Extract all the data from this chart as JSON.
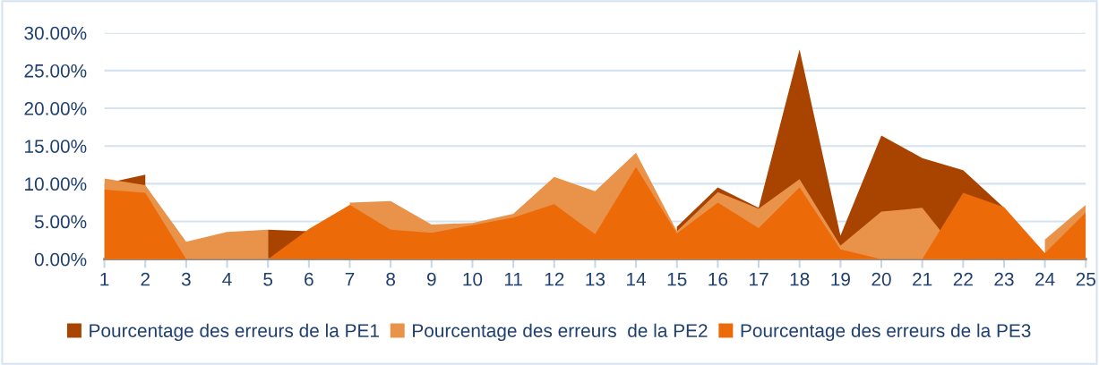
{
  "chart_data": {
    "type": "area",
    "categories": [
      "1",
      "2",
      "3",
      "4",
      "5",
      "6",
      "7",
      "8",
      "9",
      "10",
      "11",
      "12",
      "13",
      "14",
      "15",
      "16",
      "17",
      "18",
      "19",
      "20",
      "21",
      "22",
      "23",
      "24",
      "25"
    ],
    "series": [
      {
        "name": "Pourcentage des erreurs de la PE1",
        "color": "#a84400",
        "values": [
          10.0,
          11.2,
          null,
          null,
          3.9,
          3.7,
          null,
          null,
          null,
          null,
          null,
          null,
          null,
          null,
          4.3,
          9.5,
          6.8,
          27.8,
          3.1,
          16.4,
          13.4,
          11.8,
          6.8,
          null,
          null
        ]
      },
      {
        "name": "Pourcentage des erreurs  de la PE2",
        "color": "#e8924a",
        "values": [
          10.7,
          9.8,
          2.3,
          3.6,
          3.9,
          null,
          7.5,
          7.7,
          4.6,
          4.8,
          6.0,
          10.9,
          9.0,
          14.1,
          3.7,
          8.9,
          6.7,
          10.6,
          1.8,
          6.3,
          6.8,
          0,
          null,
          2.6,
          7.2
        ]
      },
      {
        "name": "Pourcentage des erreurs de la PE3",
        "color": "#ec6a08",
        "values": [
          9.2,
          8.8,
          0,
          0,
          0,
          4.0,
          7.2,
          3.9,
          3.5,
          4.5,
          5.5,
          7.3,
          3.3,
          12.2,
          3.4,
          7.5,
          4.1,
          9.5,
          1.3,
          0,
          0,
          8.8,
          6.9,
          0.8,
          6.2
        ]
      }
    ],
    "ylim": [
      0,
      30
    ],
    "yticks": [
      {
        "value": 0,
        "label": "0.00%"
      },
      {
        "value": 5,
        "label": "5.00%"
      },
      {
        "value": 10,
        "label": "10.00%"
      },
      {
        "value": 15,
        "label": "15.00%"
      },
      {
        "value": 20,
        "label": "20.00%"
      },
      {
        "value": 25,
        "label": "25.00%"
      },
      {
        "value": 30,
        "label": "30.00%"
      }
    ],
    "grid": "y",
    "legend": "bottom"
  }
}
